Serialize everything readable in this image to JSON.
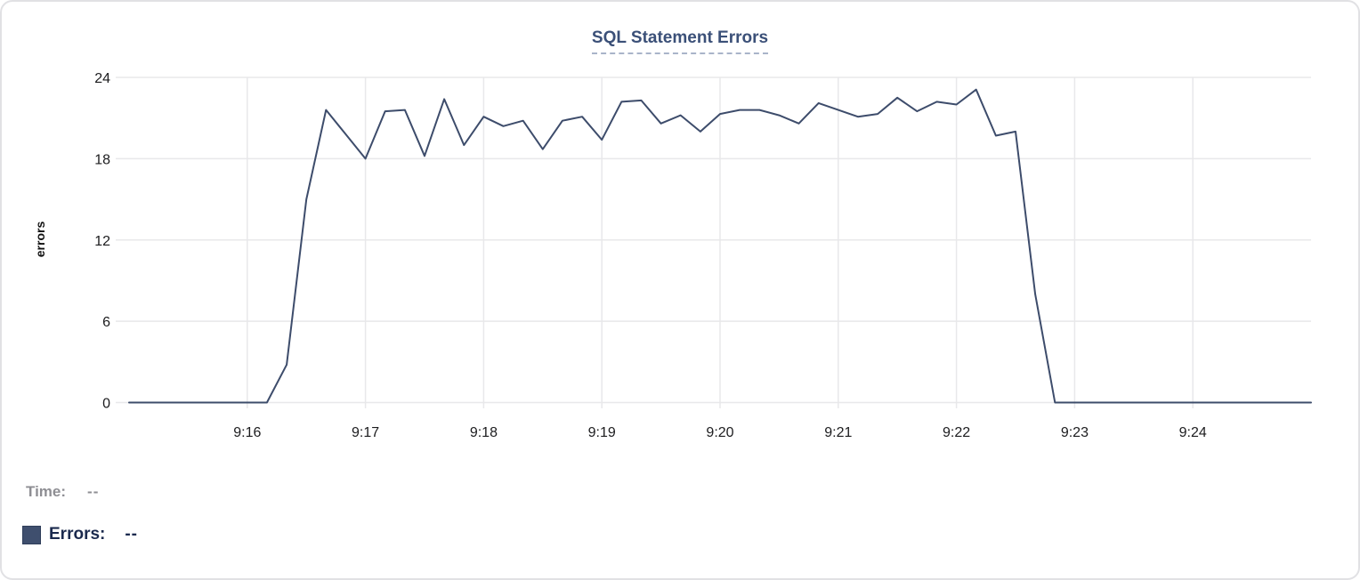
{
  "chart": {
    "title": "SQL Statement Errors"
  },
  "chart_data": {
    "type": "line",
    "title": "SQL Statement Errors",
    "xlabel": "",
    "ylabel": "errors",
    "ylim": [
      0,
      24
    ],
    "y_ticks": [
      0,
      6,
      12,
      18,
      24
    ],
    "x_tick_labels": [
      "9:16",
      "9:17",
      "9:18",
      "9:19",
      "9:20",
      "9:21",
      "9:22",
      "9:23",
      "9:24"
    ],
    "grid": true,
    "legend_position": "bottom-left",
    "x": [
      "9:15:00",
      "9:15:10",
      "9:15:20",
      "9:15:30",
      "9:15:40",
      "9:15:50",
      "9:16:00",
      "9:16:10",
      "9:16:20",
      "9:16:30",
      "9:16:40",
      "9:16:50",
      "9:17:00",
      "9:17:10",
      "9:17:20",
      "9:17:30",
      "9:17:40",
      "9:17:50",
      "9:18:00",
      "9:18:10",
      "9:18:20",
      "9:18:30",
      "9:18:40",
      "9:18:50",
      "9:19:00",
      "9:19:10",
      "9:19:20",
      "9:19:30",
      "9:19:40",
      "9:19:50",
      "9:20:00",
      "9:20:10",
      "9:20:20",
      "9:20:30",
      "9:20:40",
      "9:20:50",
      "9:21:00",
      "9:21:10",
      "9:21:20",
      "9:21:30",
      "9:21:40",
      "9:21:50",
      "9:22:00",
      "9:22:10",
      "9:22:20",
      "9:22:30",
      "9:22:40",
      "9:22:50",
      "9:23:00",
      "9:23:10",
      "9:23:20",
      "9:23:30",
      "9:23:40",
      "9:23:50",
      "9:24:00",
      "9:24:10",
      "9:24:20",
      "9:24:30",
      "9:24:40",
      "9:24:50",
      "9:25:00"
    ],
    "series": [
      {
        "name": "Errors",
        "color": "#3d4c6b",
        "values": [
          0,
          0,
          0,
          0,
          0,
          0,
          0,
          0,
          2.8,
          15,
          21.6,
          19.8,
          18,
          21.5,
          21.6,
          18.2,
          22.4,
          19,
          21.1,
          20.4,
          20.8,
          18.7,
          20.8,
          21.1,
          19.4,
          22.2,
          22.3,
          20.6,
          21.2,
          20,
          21.3,
          21.6,
          21.6,
          21.2,
          20.6,
          22.1,
          21.6,
          21.1,
          21.3,
          22.5,
          21.5,
          22.2,
          22,
          23.1,
          19.7,
          20,
          8,
          0,
          0,
          0,
          0,
          0,
          0,
          0,
          0,
          0,
          0,
          0,
          0,
          0,
          0
        ]
      }
    ]
  },
  "footer": {
    "time_label": "Time:",
    "time_value": "--",
    "errors_label": "Errors:",
    "errors_value": "--"
  },
  "colors": {
    "line": "#3d4c6b",
    "legend_swatch": "#3f4f6e",
    "title_text": "#3b5078",
    "title_dash": "#a9b4c9",
    "gridline": "#e8e8ea",
    "tick_text": "#1c1c1e",
    "time_text_gray": "#8e8e93",
    "errors_text_navy": "#1b2a4e",
    "card_border": "#e1e1e4"
  }
}
